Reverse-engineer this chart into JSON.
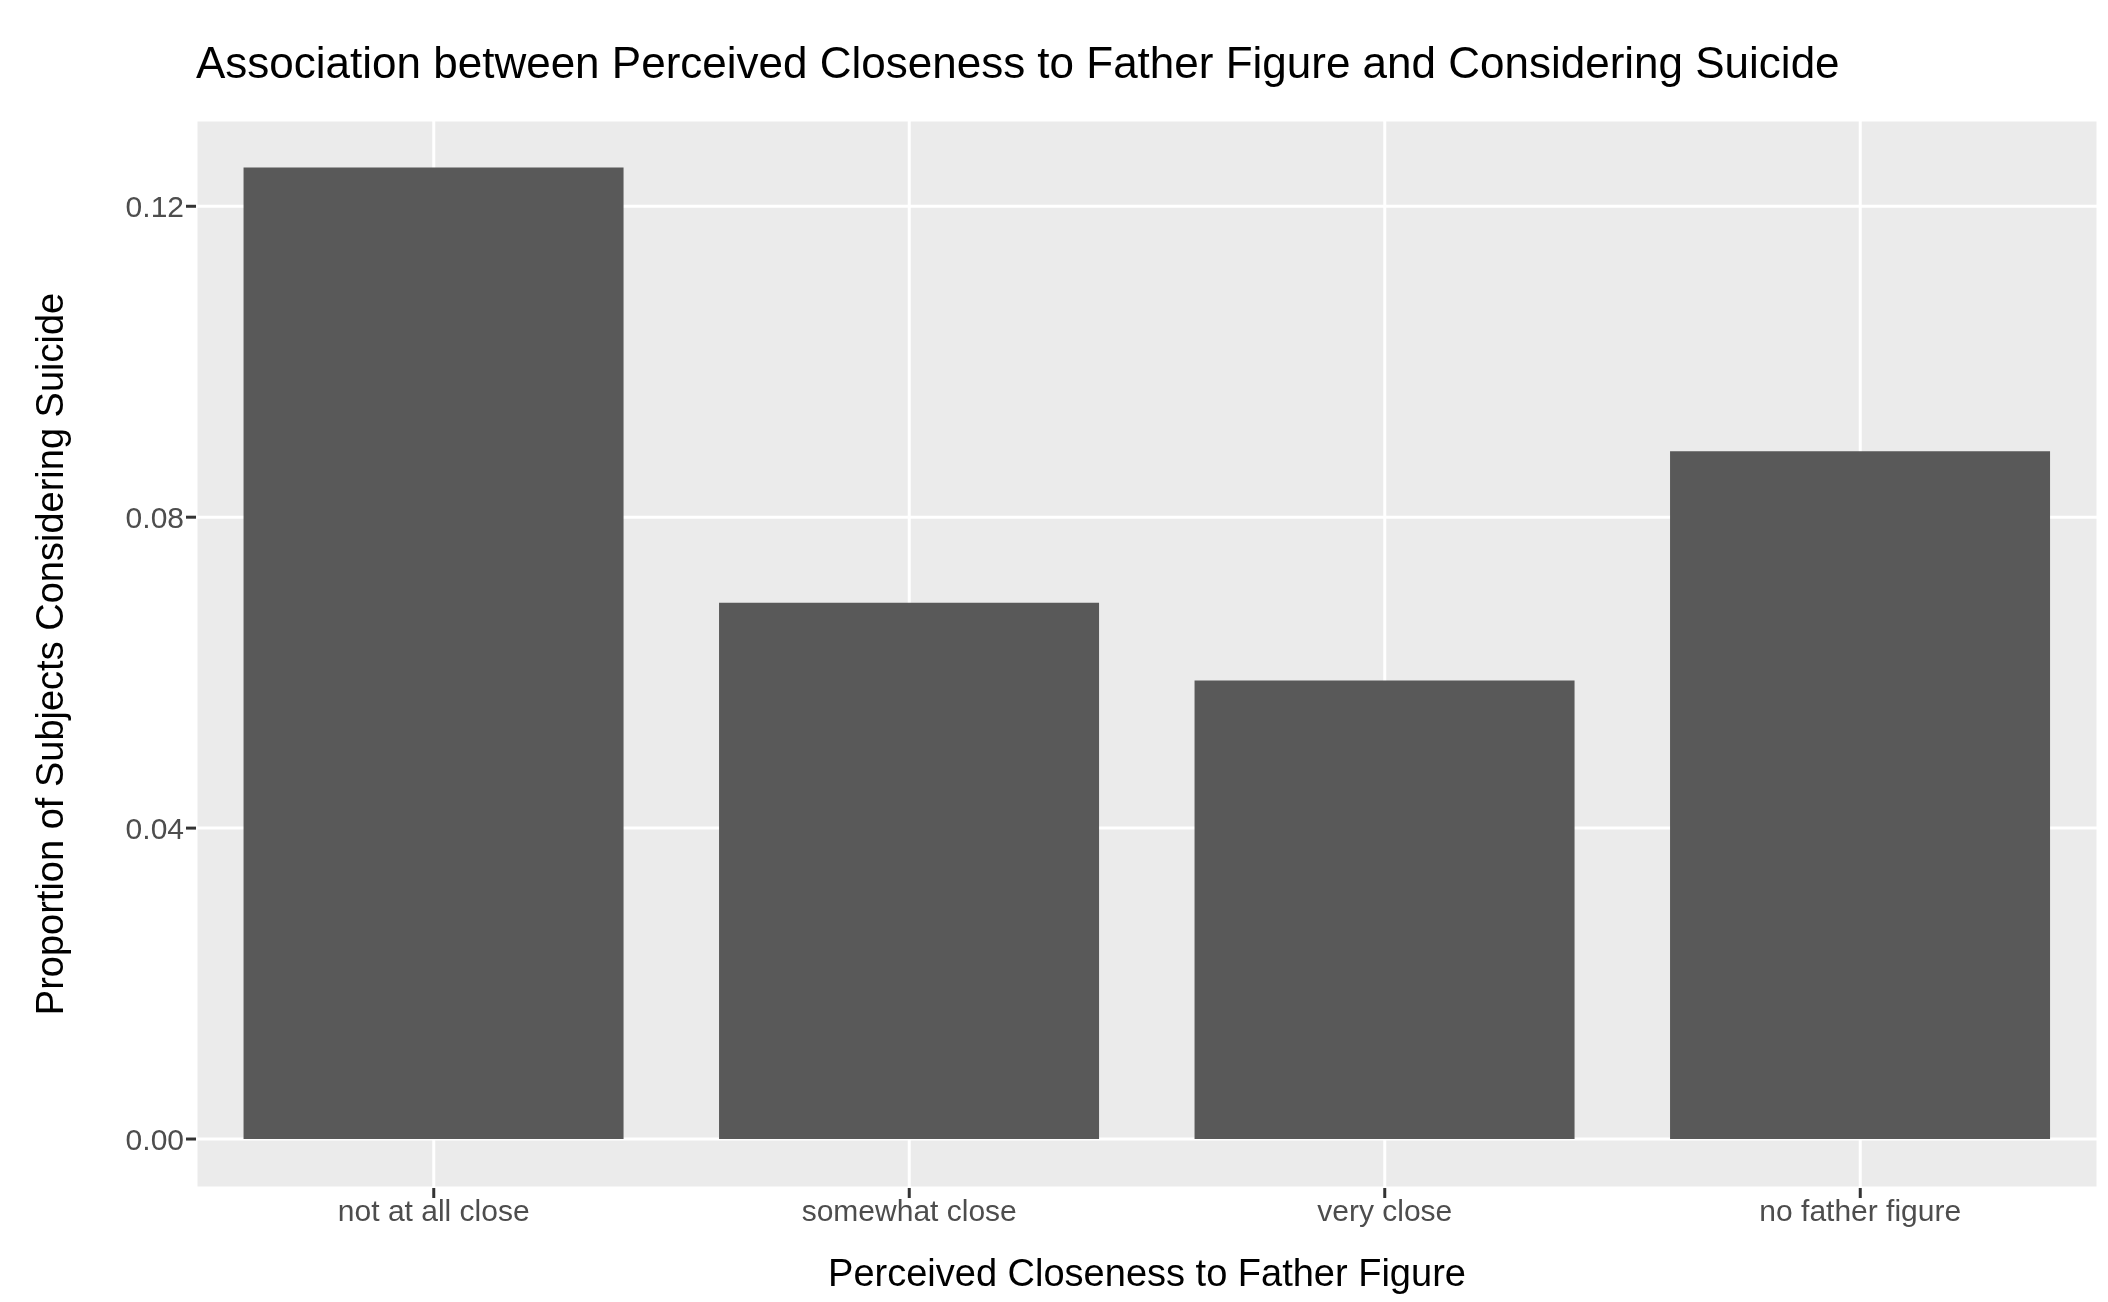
{
  "chart_data": {
    "type": "bar",
    "title": "Association between Perceived Closeness to Father Figure and Considering Suicide",
    "xlabel": "Perceived Closeness to Father Figure",
    "ylabel": "Proportion of Subjects Considering Suicide",
    "categories": [
      "not at all close",
      "somewhat close",
      "very close",
      "no father figure"
    ],
    "values": [
      0.125,
      0.069,
      0.059,
      0.0885
    ],
    "color": "#595959",
    "ylim": [
      -0.0063,
      0.1311
    ],
    "yticks": [
      {
        "value": 0,
        "label": "0.00"
      },
      {
        "value": 0.04,
        "label": "0.04"
      },
      {
        "value": 0.08,
        "label": "0.08"
      },
      {
        "value": 0.12,
        "label": "0.12"
      }
    ],
    "grid": true
  }
}
